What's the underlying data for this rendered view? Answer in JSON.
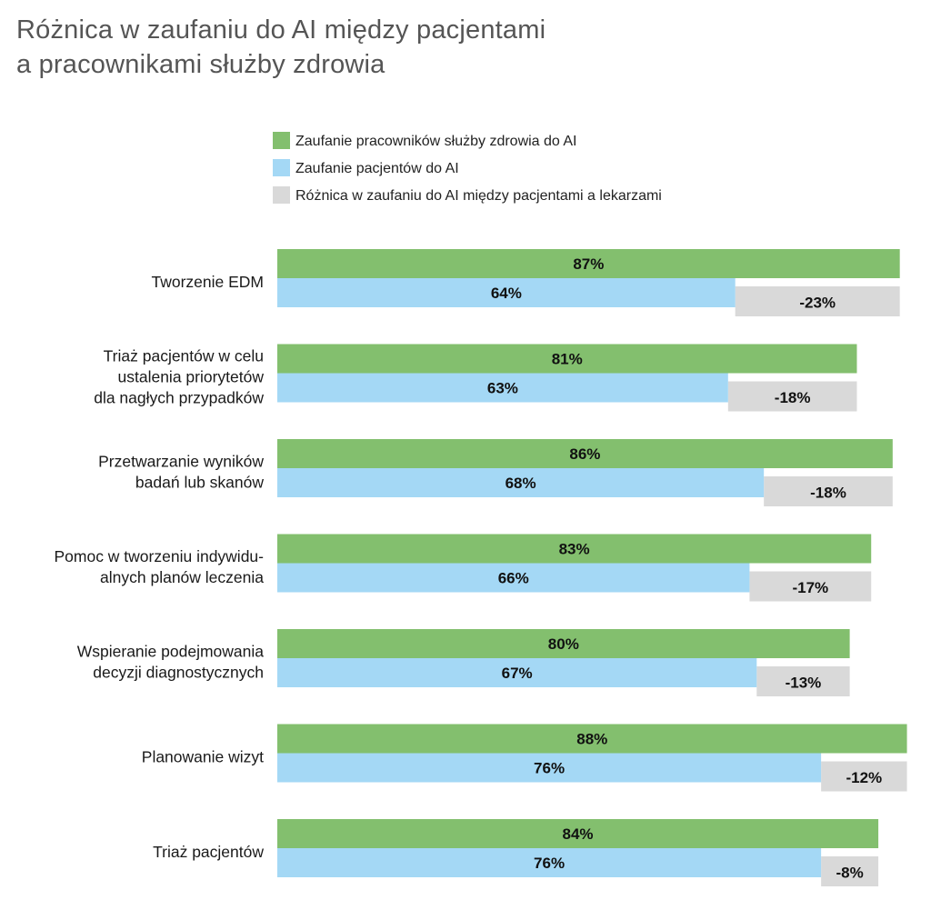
{
  "title_lines": [
    "Różnica w zaufaniu do AI między pacjentami",
    "a pracownikami służby zdrowia"
  ],
  "colors": {
    "staff": "#83bf6e",
    "patients": "#a4d8f5",
    "difference": "#d9d9d9"
  },
  "chart_data": {
    "type": "bar",
    "orientation": "horizontal",
    "title": "Różnica w zaufaniu do AI między pacjentami a pracownikami służby zdrowia",
    "legend_placement": "top",
    "grid": false,
    "xlim": [
      0,
      88
    ],
    "categories": [
      [
        "Tworzenie EDM"
      ],
      [
        "Triaż pacjentów w celu",
        "ustalenia priorytetów",
        "dla nagłych przypadków"
      ],
      [
        "Przetwarzanie wyników",
        "badań lub skanów"
      ],
      [
        "Pomoc w tworzeniu indywidu-",
        "alnych planów leczenia"
      ],
      [
        "Wspieranie podejmowania",
        "decyzji diagnostycznych"
      ],
      [
        "Planowanie wizyt"
      ],
      [
        "Triaż pacjentów"
      ]
    ],
    "series": [
      {
        "name": "Zaufanie pracowników służby zdrowia do AI",
        "color": "#83bf6e",
        "values": [
          87,
          81,
          86,
          83,
          80,
          88,
          84
        ],
        "labels": [
          "87%",
          "81%",
          "86%",
          "83%",
          "80%",
          "88%",
          "84%"
        ]
      },
      {
        "name": "Zaufanie pacjentów do AI",
        "color": "#a4d8f5",
        "values": [
          64,
          63,
          68,
          66,
          67,
          76,
          76
        ],
        "labels": [
          "64%",
          "63%",
          "68%",
          "66%",
          "67%",
          "76%",
          "76%"
        ]
      },
      {
        "name": "Różnica w zaufaniu do AI między pacjentami a lekarzami",
        "color": "#d9d9d9",
        "values": [
          -23,
          -18,
          -18,
          -17,
          -13,
          -12,
          -8
        ],
        "labels": [
          "-23%",
          "-18%",
          "-18%",
          "-17%",
          "-13%",
          "-12%",
          "-8%"
        ]
      }
    ]
  }
}
